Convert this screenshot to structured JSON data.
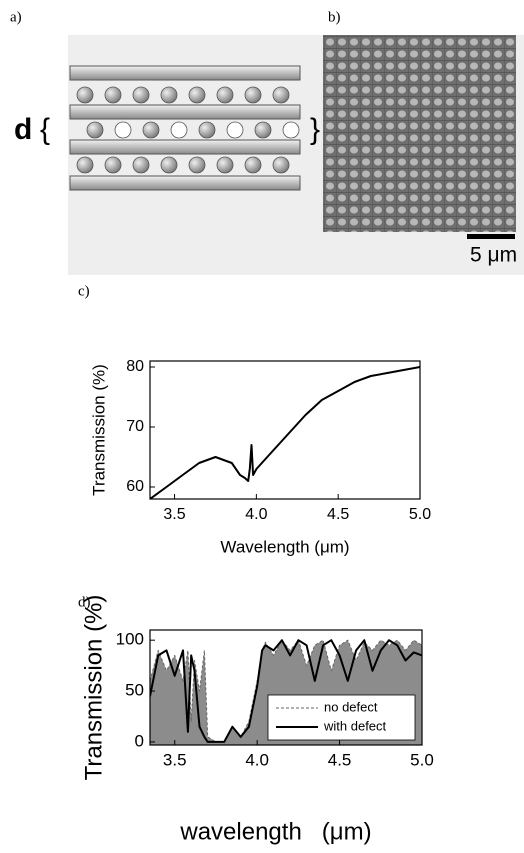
{
  "panel_labels": [
    "a)",
    "b)"
  ],
  "diagram": {
    "label": "d"
  },
  "micrograph": {
    "scale_bar": "5 μm"
  },
  "chart_data": [
    {
      "type": "line",
      "panel_label": "c)",
      "x_label": "Wavelength (μm)",
      "y_label": "Transmission (%)",
      "x": [
        3.35,
        3.45,
        3.55,
        3.65,
        3.75,
        3.8,
        3.85,
        3.9,
        3.93,
        3.95,
        3.96,
        3.97,
        3.98,
        4.0,
        4.1,
        4.2,
        4.3,
        4.4,
        4.5,
        4.6,
        4.7,
        4.8,
        4.9,
        5.0
      ],
      "series": [
        {
          "color": "#000000",
          "values": [
            58,
            60,
            62,
            64,
            65,
            64.5,
            64,
            62,
            61.5,
            61,
            63,
            67,
            62,
            63,
            66,
            69,
            72,
            74.5,
            76,
            77.5,
            78.5,
            79,
            79.5,
            80
          ]
        }
      ],
      "xlim": [
        3.35,
        5.0
      ],
      "ylim": [
        58,
        81
      ],
      "xticks": [
        3.5,
        {
          "value": 4,
          "label": "4.0"
        },
        4.5,
        {
          "value": 5,
          "label": "5.0"
        }
      ],
      "yticks": [
        60,
        70,
        80
      ]
    },
    {
      "type": "line",
      "panel_label": "d)",
      "x_label": "wavelength   (μm)",
      "y_label": "Transmission (%)",
      "x": [
        3.35,
        3.4,
        3.45,
        3.5,
        3.55,
        3.58,
        3.6,
        3.62,
        3.65,
        3.68,
        3.7,
        3.75,
        3.8,
        3.85,
        3.9,
        3.95,
        4.0,
        4.03,
        4.05,
        4.1,
        4.15,
        4.2,
        4.25,
        4.3,
        4.35,
        4.4,
        4.45,
        4.5,
        4.55,
        4.6,
        4.65,
        4.7,
        4.75,
        4.8,
        4.85,
        4.9,
        4.95,
        5.0
      ],
      "series": [
        {
          "name": "no defect",
          "color": "#666666",
          "fill": "#8c8c8c",
          "linestyle": "dashed",
          "values": [
            60,
            90,
            70,
            85,
            60,
            90,
            20,
            80,
            50,
            90,
            5,
            0,
            0,
            15,
            5,
            20,
            60,
            90,
            98,
            85,
            100,
            90,
            100,
            75,
            95,
            100,
            70,
            95,
            100,
            80,
            98,
            90,
            100,
            95,
            100,
            90,
            100,
            95
          ]
        },
        {
          "name": "with defect",
          "color": "#000000",
          "linestyle": "solid",
          "values": [
            45,
            85,
            90,
            65,
            90,
            10,
            85,
            70,
            15,
            5,
            0,
            0,
            0,
            15,
            5,
            15,
            55,
            90,
            95,
            90,
            100,
            85,
            100,
            95,
            60,
            95,
            100,
            85,
            60,
            90,
            100,
            70,
            90,
            100,
            95,
            80,
            88,
            85
          ]
        }
      ],
      "xlim": [
        3.35,
        5.0
      ],
      "ylim": [
        -3,
        110
      ],
      "xticks": [
        3.5,
        {
          "value": 4,
          "label": "4.0"
        },
        4.5,
        {
          "value": 5,
          "label": "5.0"
        }
      ],
      "yticks": [
        0,
        50,
        100
      ],
      "legend": "lower right"
    }
  ]
}
